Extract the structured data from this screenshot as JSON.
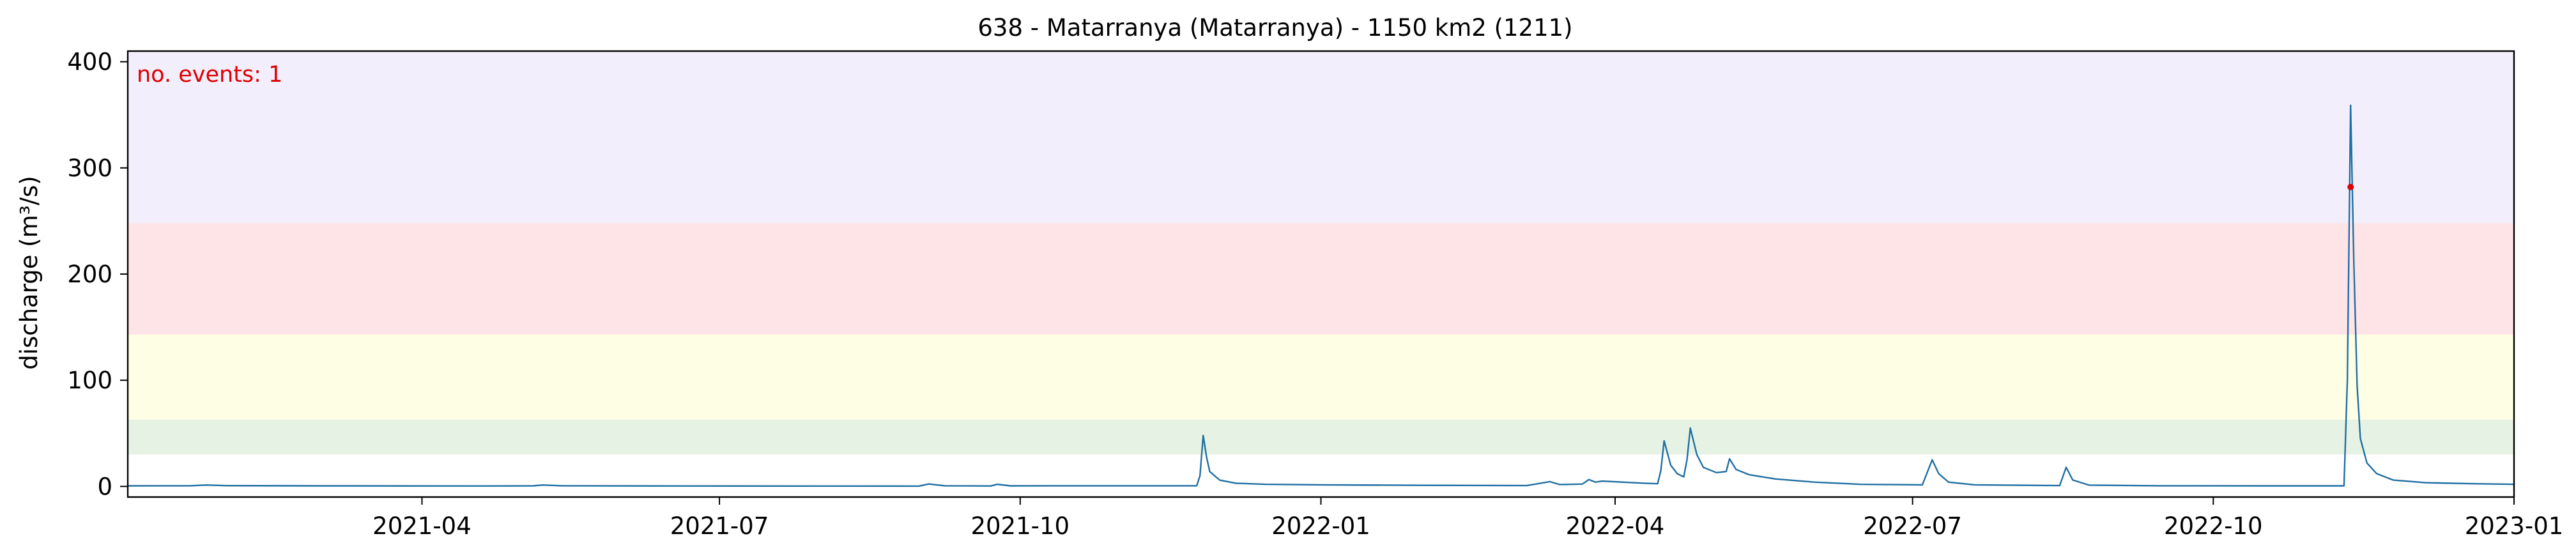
{
  "chart_data": {
    "type": "line",
    "title": "638 - Matarranya (Matarranya) - 1150 km2 (1211)",
    "xlabel": "",
    "ylabel": "discharge (m³/s)",
    "xlim": [
      "2021-01-01",
      "2023-01-01"
    ],
    "ylim": [
      -10,
      410
    ],
    "x_ticks": [
      "2021-04",
      "2021-07",
      "2021-10",
      "2022-01",
      "2022-04",
      "2022-07",
      "2022-10",
      "2023-01"
    ],
    "y_ticks": [
      0,
      100,
      200,
      300,
      400
    ],
    "grid": false,
    "annotation": {
      "text": "no. events: 1",
      "color": "#dd0000"
    },
    "threshold_bands": [
      {
        "from": 30,
        "to": 63,
        "color": "#e6f2e4"
      },
      {
        "from": 63,
        "to": 143,
        "color": "#fefee4"
      },
      {
        "from": 143,
        "to": 248,
        "color": "#fee4e6"
      },
      {
        "from": 248,
        "to": 410,
        "color": "#f2eefb"
      }
    ],
    "events": [
      {
        "date": "2022-11-12",
        "value": 282,
        "color": "#dd0000"
      }
    ],
    "series": [
      {
        "color": "#1f6fa3",
        "points": [
          [
            "2021-01-01",
            0.5
          ],
          [
            "2021-01-20",
            0.6
          ],
          [
            "2021-01-25",
            1.3
          ],
          [
            "2021-01-31",
            0.7
          ],
          [
            "2021-03-01",
            0.5
          ],
          [
            "2021-04-15",
            0.4
          ],
          [
            "2021-05-05",
            0.5
          ],
          [
            "2021-05-08",
            1.3
          ],
          [
            "2021-05-14",
            0.6
          ],
          [
            "2021-06-20",
            0.4
          ],
          [
            "2021-08-31",
            0.3
          ],
          [
            "2021-09-03",
            2.3
          ],
          [
            "2021-09-08",
            0.6
          ],
          [
            "2021-09-22",
            0.4
          ],
          [
            "2021-09-24",
            2.0
          ],
          [
            "2021-09-28",
            0.5
          ],
          [
            "2021-11-24",
            0.6
          ],
          [
            "2021-11-25",
            10
          ],
          [
            "2021-11-26",
            48
          ],
          [
            "2021-11-27",
            28
          ],
          [
            "2021-11-28",
            14
          ],
          [
            "2021-12-01",
            6
          ],
          [
            "2021-12-06",
            3
          ],
          [
            "2021-12-15",
            2
          ],
          [
            "2022-01-01",
            1.5
          ],
          [
            "2022-02-01",
            1.0
          ],
          [
            "2022-03-05",
            0.8
          ],
          [
            "2022-03-12",
            4.5
          ],
          [
            "2022-03-15",
            1.8
          ],
          [
            "2022-03-22",
            2.2
          ],
          [
            "2022-03-24",
            6.5
          ],
          [
            "2022-03-26",
            4.0
          ],
          [
            "2022-03-28",
            5.0
          ],
          [
            "2022-04-10",
            3.0
          ],
          [
            "2022-04-14",
            2.5
          ],
          [
            "2022-04-15",
            15
          ],
          [
            "2022-04-16",
            43
          ],
          [
            "2022-04-18",
            20
          ],
          [
            "2022-04-20",
            12
          ],
          [
            "2022-04-22",
            9
          ],
          [
            "2022-04-23",
            25
          ],
          [
            "2022-04-24",
            55
          ],
          [
            "2022-04-26",
            30
          ],
          [
            "2022-04-28",
            18
          ],
          [
            "2022-05-02",
            13
          ],
          [
            "2022-05-05",
            14
          ],
          [
            "2022-05-06",
            26
          ],
          [
            "2022-05-08",
            16
          ],
          [
            "2022-05-12",
            11
          ],
          [
            "2022-05-20",
            7
          ],
          [
            "2022-06-01",
            4
          ],
          [
            "2022-06-15",
            2
          ],
          [
            "2022-07-04",
            1.5
          ],
          [
            "2022-07-07",
            25
          ],
          [
            "2022-07-09",
            12
          ],
          [
            "2022-07-12",
            4
          ],
          [
            "2022-07-20",
            1.5
          ],
          [
            "2022-08-15",
            0.8
          ],
          [
            "2022-08-17",
            18
          ],
          [
            "2022-08-19",
            6
          ],
          [
            "2022-08-24",
            1.2
          ],
          [
            "2022-09-15",
            0.6
          ],
          [
            "2022-10-15",
            0.5
          ],
          [
            "2022-11-10",
            0.5
          ],
          [
            "2022-11-11",
            100
          ],
          [
            "2022-11-12",
            359
          ],
          [
            "2022-11-13",
            210
          ],
          [
            "2022-11-14",
            95
          ],
          [
            "2022-11-15",
            45
          ],
          [
            "2022-11-17",
            22
          ],
          [
            "2022-11-20",
            12
          ],
          [
            "2022-11-25",
            6
          ],
          [
            "2022-12-05",
            3.5
          ],
          [
            "2022-12-20",
            2.5
          ],
          [
            "2023-01-01",
            2.0
          ]
        ]
      }
    ]
  }
}
